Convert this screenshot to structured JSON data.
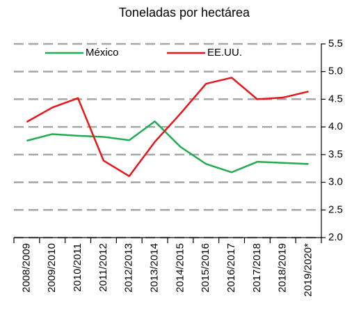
{
  "chart_data": {
    "type": "line",
    "title": "Toneladas por hectárea",
    "categories": [
      "2008/2009",
      "2009/2010",
      "2010/2011",
      "2011/2012",
      "2012/2013",
      "2013/2014",
      "2014/2015",
      "2015/2016",
      "2016/2017",
      "2017/2018",
      "2018/2019",
      "2019/2020*"
    ],
    "series": [
      {
        "name": "México",
        "color": "#1fad4f",
        "values": [
          3.75,
          3.87,
          3.84,
          3.82,
          3.76,
          4.1,
          3.64,
          3.33,
          3.18,
          3.37,
          3.35,
          3.33
        ]
      },
      {
        "name": "EE.UU.",
        "color": "#e8151b",
        "values": [
          4.09,
          4.35,
          4.52,
          3.39,
          3.11,
          3.73,
          4.24,
          4.78,
          4.89,
          4.5,
          4.53,
          4.64
        ]
      }
    ],
    "ylim": [
      2.0,
      5.5
    ],
    "yticks": [
      {
        "value": 2.0,
        "label": "2.0"
      },
      {
        "value": 2.5,
        "label": "2.5"
      },
      {
        "value": 3.0,
        "label": "3.0"
      },
      {
        "value": 3.5,
        "label": "3.5"
      },
      {
        "value": 4.0,
        "label": "4.0"
      },
      {
        "value": 4.5,
        "label": "4.5"
      },
      {
        "value": 5.0,
        "label": "5.0"
      },
      {
        "value": 5.5,
        "label": "5.5"
      }
    ],
    "grid": true,
    "legend": "top"
  }
}
